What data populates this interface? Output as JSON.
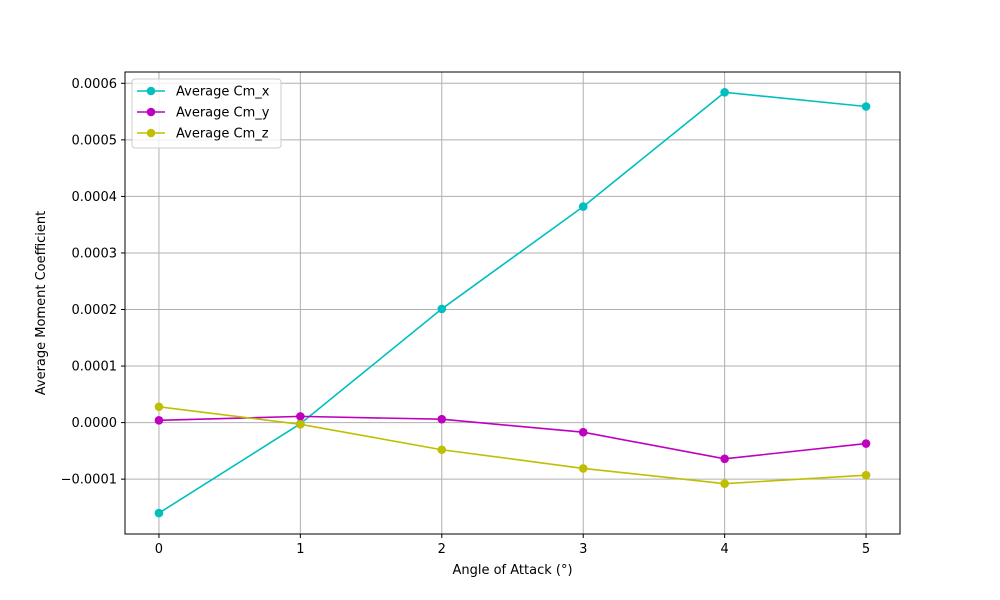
{
  "chart_data": {
    "type": "line",
    "title": "",
    "xlabel": "Angle of Attack (°)",
    "ylabel": "Average Moment Coefficient",
    "x": [
      0,
      1,
      2,
      3,
      4,
      5
    ],
    "xticks": [
      "0",
      "1",
      "2",
      "3",
      "4",
      "5"
    ],
    "xlim": [
      -0.24,
      5.24
    ],
    "ylim": [
      -0.000197,
      0.00062
    ],
    "yticks": [
      {
        "value": -0.0001,
        "label": "−0.0001"
      },
      {
        "value": 0.0,
        "label": "0.0000"
      },
      {
        "value": 0.0001,
        "label": "0.0001"
      },
      {
        "value": 0.0002,
        "label": "0.0002"
      },
      {
        "value": 0.0003,
        "label": "0.0003"
      },
      {
        "value": 0.0004,
        "label": "0.0004"
      },
      {
        "value": 0.0005,
        "label": "0.0005"
      },
      {
        "value": 0.0006,
        "label": "0.0006"
      }
    ],
    "grid": true,
    "legend_position": "top-left",
    "series": [
      {
        "name": "Average Cm_x",
        "color": "#00bfbf",
        "values": [
          -0.00016,
          -2e-06,
          0.000201,
          0.000382,
          0.000584,
          0.000559
        ]
      },
      {
        "name": "Average Cm_y",
        "color": "#bf00bf",
        "values": [
          4e-06,
          1.1e-05,
          6e-06,
          -1.7e-05,
          -6.4e-05,
          -3.7e-05
        ]
      },
      {
        "name": "Average Cm_z",
        "color": "#bfbf00",
        "values": [
          2.8e-05,
          -3e-06,
          -4.8e-05,
          -8.1e-05,
          -0.000108,
          -9.3e-05
        ]
      }
    ]
  }
}
